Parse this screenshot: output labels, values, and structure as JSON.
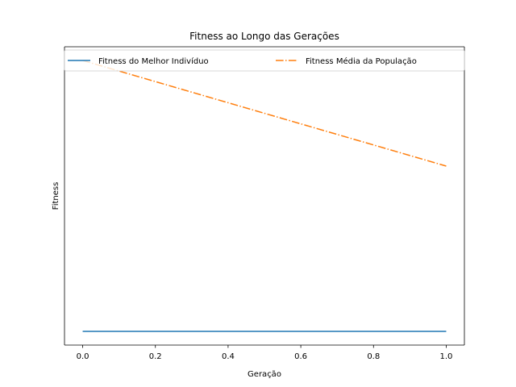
{
  "chart_data": {
    "type": "line",
    "title": "Fitness ao Longo das Gerações",
    "xlabel": "Geração",
    "ylabel": "Fitness",
    "xlim": [
      -0.05,
      1.05
    ],
    "ylim": [
      0,
      1
    ],
    "x_ticks": [
      "0.0",
      "0.2",
      "0.4",
      "0.6",
      "0.8",
      "1.0"
    ],
    "y_ticks_shown": false,
    "grid": false,
    "legend_position": "upper center",
    "series": [
      {
        "name": "Fitness do Melhor Indivíduo",
        "x": [
          0.0,
          1.0
        ],
        "y": [
          0.046,
          0.046
        ],
        "color": "#1f77b4",
        "style": "solid"
      },
      {
        "name": "Fitness Média da População",
        "x": [
          0.0,
          1.0
        ],
        "y": [
          0.954,
          0.6
        ],
        "color": "#ff7f0e",
        "style": "dashdot"
      }
    ]
  }
}
